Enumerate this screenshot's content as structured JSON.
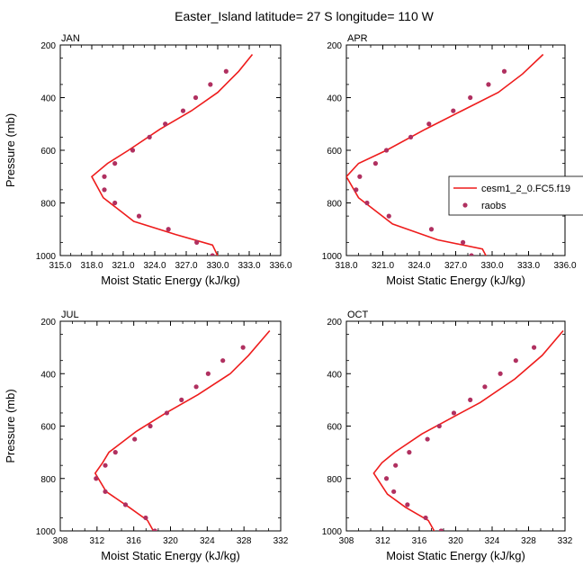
{
  "figure_title": "Easter_Island  latitude= 27 S longitude= 110 W",
  "colors": {
    "model": "#ee1c1c",
    "obs": "#b03060",
    "axis": "#000000"
  },
  "legend": {
    "model_label": "cesm1_2_0.FC5.f19",
    "obs_label": "raobs"
  },
  "chart_data": [
    {
      "type": "line",
      "title": "JAN",
      "xlabel": "Moist Static Energy (kJ/kg)",
      "ylabel": "Pressure (mb)",
      "xlim": [
        315.0,
        336.0
      ],
      "ylim": [
        1000,
        200
      ],
      "xticks": [
        "315.0",
        "318.0",
        "321.0",
        "324.0",
        "327.0",
        "330.0",
        "333.0",
        "336.0"
      ],
      "yticks": [
        "200",
        "400",
        "600",
        "800",
        "1000"
      ],
      "series": [
        {
          "name": "cesm1_2_0.FC5.f19",
          "style": "line",
          "x": [
            330.1,
            329.5,
            326.0,
            322.0,
            319.1,
            318.0,
            319.5,
            321.5,
            324.5,
            327.5,
            330.0,
            332.0,
            333.3
          ],
          "y": [
            1010,
            960,
            920,
            870,
            780,
            700,
            650,
            600,
            520,
            450,
            380,
            300,
            236
          ]
        },
        {
          "name": "raobs",
          "style": "points",
          "x": [
            329.5,
            328.0,
            325.3,
            322.5,
            320.2,
            319.2,
            319.2,
            320.2,
            321.9,
            323.5,
            325.0,
            326.7,
            327.9,
            329.3,
            330.8
          ],
          "y": [
            1000,
            950,
            900,
            850,
            800,
            750,
            700,
            650,
            600,
            550,
            500,
            450,
            400,
            350,
            300
          ]
        }
      ]
    },
    {
      "type": "line",
      "title": "APR",
      "xlabel": "Moist Static Energy (kJ/kg)",
      "ylabel": "",
      "xlim": [
        318.0,
        336.0
      ],
      "ylim": [
        1000,
        200
      ],
      "xticks": [
        "318.0",
        "321.0",
        "324.0",
        "327.0",
        "330.0",
        "333.0",
        "336.0"
      ],
      "yticks": [
        "200",
        "400",
        "600",
        "800",
        "1000"
      ],
      "series": [
        {
          "name": "cesm1_2_0.FC5.f19",
          "style": "line",
          "x": [
            329.6,
            329.2,
            325.5,
            321.8,
            319.0,
            318.0,
            319.0,
            321.3,
            324.5,
            327.5,
            330.5,
            332.5,
            334.2
          ],
          "y": [
            1010,
            975,
            940,
            880,
            780,
            700,
            650,
            600,
            520,
            450,
            380,
            310,
            236
          ]
        },
        {
          "name": "raobs",
          "style": "points",
          "x": [
            328.3,
            327.6,
            325.0,
            321.5,
            319.7,
            318.8,
            319.1,
            320.4,
            321.3,
            323.3,
            324.8,
            326.8,
            328.2,
            329.7,
            331.0
          ],
          "y": [
            1000,
            950,
            900,
            850,
            800,
            750,
            700,
            650,
            600,
            550,
            500,
            450,
            400,
            350,
            300
          ]
        }
      ]
    },
    {
      "type": "line",
      "title": "JUL",
      "xlabel": "Moist Static Energy (kJ/kg)",
      "ylabel": "Pressure (mb)",
      "xlim": [
        308,
        332
      ],
      "ylim": [
        1000,
        200
      ],
      "xticks": [
        "308",
        "312",
        "316",
        "320",
        "324",
        "328",
        "332"
      ],
      "yticks": [
        "200",
        "400",
        "600",
        "800",
        "1000"
      ],
      "series": [
        {
          "name": "cesm1_2_0.FC5.f19",
          "style": "line",
          "x": [
            318.3,
            317.5,
            315.5,
            313.0,
            311.8,
            312.6,
            313.3,
            316.3,
            319.5,
            323.0,
            326.5,
            328.5,
            330.8
          ],
          "y": [
            1010,
            960,
            910,
            850,
            780,
            740,
            700,
            620,
            550,
            480,
            400,
            330,
            236
          ]
        },
        {
          "name": "raobs",
          "style": "points",
          "x": [
            318.3,
            317.3,
            315.1,
            312.9,
            311.9,
            312.9,
            314.0,
            316.1,
            317.8,
            319.6,
            321.2,
            322.8,
            324.1,
            325.7,
            327.9
          ],
          "y": [
            1000,
            950,
            900,
            850,
            800,
            750,
            700,
            650,
            600,
            550,
            500,
            450,
            400,
            350,
            300
          ]
        }
      ]
    },
    {
      "type": "line",
      "title": "OCT",
      "xlabel": "Moist Static Energy (kJ/kg)",
      "ylabel": "",
      "xlim": [
        308,
        332
      ],
      "ylim": [
        1000,
        200
      ],
      "xticks": [
        "308",
        "312",
        "316",
        "320",
        "324",
        "328",
        "332"
      ],
      "yticks": [
        "200",
        "400",
        "600",
        "800",
        "1000"
      ],
      "series": [
        {
          "name": "cesm1_2_0.FC5.f19",
          "style": "line",
          "x": [
            317.8,
            317.0,
            314.5,
            312.5,
            311.0,
            311.9,
            313.3,
            316.3,
            320.0,
            322.7,
            326.5,
            329.5,
            331.8
          ],
          "y": [
            1010,
            960,
            910,
            860,
            780,
            740,
            700,
            630,
            560,
            510,
            420,
            330,
            236
          ]
        },
        {
          "name": "raobs",
          "style": "points",
          "x": [
            318.4,
            316.7,
            314.7,
            313.2,
            312.4,
            313.4,
            314.9,
            316.9,
            318.2,
            319.8,
            321.6,
            323.2,
            324.9,
            326.6,
            328.6
          ],
          "y": [
            1000,
            950,
            900,
            850,
            800,
            750,
            700,
            650,
            600,
            550,
            500,
            450,
            400,
            350,
            300
          ]
        }
      ]
    }
  ]
}
